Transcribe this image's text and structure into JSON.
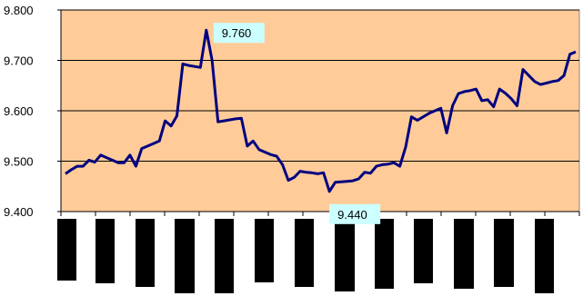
{
  "chart_data": {
    "type": "line",
    "title": "",
    "xlabel": "",
    "ylabel": "",
    "ylim": [
      9.4,
      9.8
    ],
    "yticks": [
      "9.400",
      "9.500",
      "9.600",
      "9.700",
      "9.800"
    ],
    "grid": true,
    "colors": {
      "plot_bg": "#FFCC99",
      "line": "#000080",
      "callout_bg": "#CCFFFF",
      "gridline": "#000000"
    },
    "x_tick_count": 15,
    "x_category_labels": "obscured by black bars (not legible)",
    "series": [
      {
        "values": [
          9.475,
          9.483,
          9.49,
          9.49,
          9.502,
          9.498,
          9.512,
          9.507,
          9.502,
          9.497,
          9.497,
          9.512,
          9.49,
          9.525,
          9.53,
          9.535,
          9.54,
          9.58,
          9.57,
          9.59,
          9.693,
          9.69,
          9.688,
          9.686,
          9.76,
          9.7,
          9.578,
          9.58,
          9.582,
          9.584,
          9.585,
          9.53,
          9.54,
          9.523,
          9.518,
          9.513,
          9.51,
          9.493,
          9.462,
          9.468,
          9.48,
          9.478,
          9.477,
          9.475,
          9.477,
          9.44,
          9.458,
          9.459,
          9.46,
          9.461,
          9.465,
          9.478,
          9.476,
          9.49,
          9.493,
          9.494,
          9.497,
          9.49,
          9.528,
          9.588,
          9.581,
          9.588,
          9.595,
          9.6,
          9.605,
          9.556,
          9.61,
          9.634,
          9.638,
          9.64,
          9.643,
          9.62,
          9.622,
          9.608,
          9.643,
          9.635,
          9.624,
          9.61,
          9.682,
          9.67,
          9.658,
          9.652,
          9.655,
          9.658,
          9.66,
          9.67,
          9.712,
          9.717
        ]
      }
    ],
    "annotations": [
      {
        "label": "9.760",
        "point_index": 24,
        "value": 9.76
      },
      {
        "label": "9.440",
        "point_index": 45,
        "value": 9.44
      }
    ]
  }
}
